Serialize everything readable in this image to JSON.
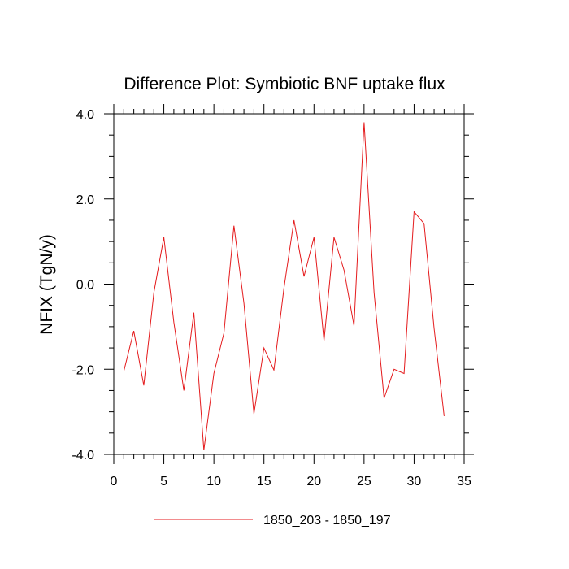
{
  "chart_data": {
    "type": "line",
    "title": "Difference Plot: Symbiotic BNF uptake flux",
    "xlabel": "",
    "ylabel": "NFIX  (TgN/y)",
    "xlim": [
      0,
      35
    ],
    "ylim": [
      -4.0,
      4.0
    ],
    "xticks": [
      0,
      5,
      10,
      15,
      20,
      25,
      30,
      35
    ],
    "xtick_labels": [
      "0",
      "5",
      "10",
      "15",
      "20",
      "25",
      "30",
      "35"
    ],
    "yticks": [
      -4.0,
      -2.0,
      0.0,
      2.0,
      4.0
    ],
    "ytick_labels": [
      "-4.0",
      "-2.0",
      "0.0",
      "2.0",
      "4.0"
    ],
    "grid": false,
    "legend_position": "bottom",
    "series": [
      {
        "name": "1850_203 - 1850_197",
        "color": "#e41a1c",
        "x": [
          1,
          2,
          3,
          4,
          5,
          6,
          7,
          8,
          9,
          10,
          11,
          12,
          13,
          14,
          15,
          16,
          17,
          18,
          19,
          20,
          21,
          22,
          23,
          24,
          25,
          26,
          27,
          28,
          29,
          30,
          31,
          32,
          33
        ],
        "y": [
          -2.05,
          -1.1,
          -2.38,
          -0.2,
          1.1,
          -0.9,
          -2.5,
          -0.67,
          -3.9,
          -2.1,
          -1.15,
          1.37,
          -0.45,
          -3.05,
          -1.5,
          -2.02,
          -0.1,
          1.5,
          0.18,
          1.1,
          -1.33,
          1.1,
          0.33,
          -0.98,
          3.8,
          -0.2,
          -2.68,
          -2.0,
          -2.1,
          1.7,
          1.42,
          -1.05,
          -3.1
        ]
      }
    ]
  }
}
